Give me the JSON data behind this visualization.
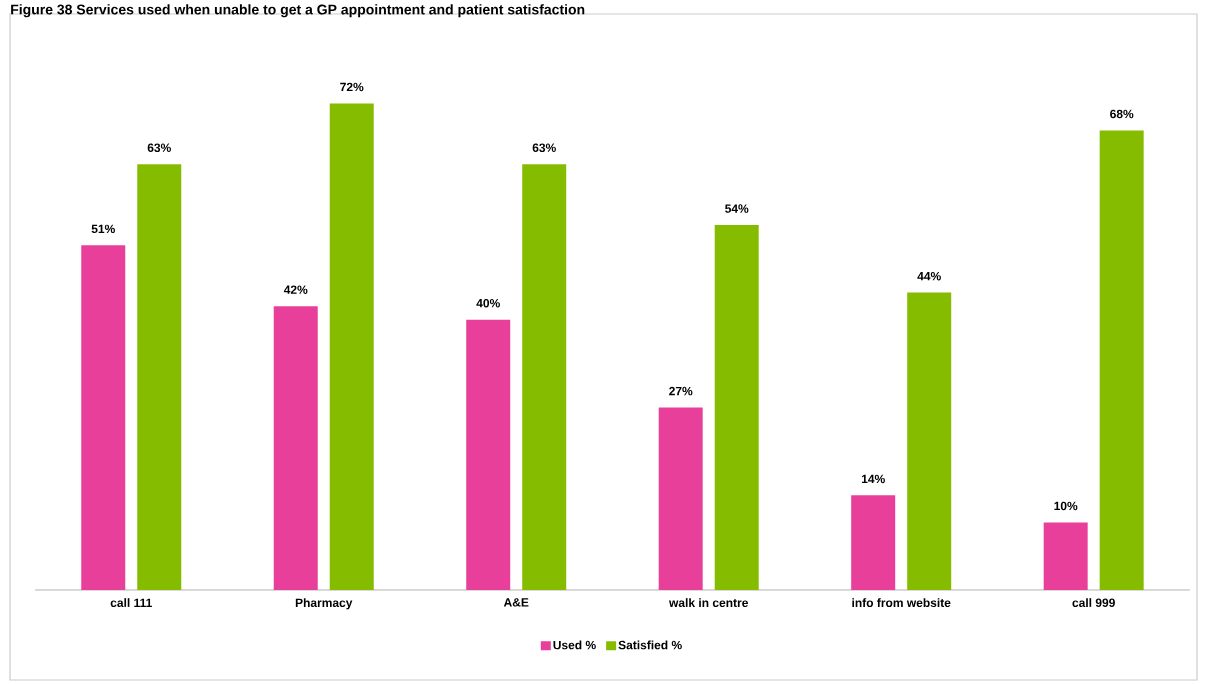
{
  "chart_data": {
    "type": "bar",
    "title": "Figure 38 Services used when unable to get a GP appointment and patient satisfaction",
    "categories": [
      "call 111",
      "Pharmacy",
      "A&E",
      "walk in centre",
      "info from website",
      "call 999"
    ],
    "series": [
      {
        "name": "Used %",
        "color": "#e8409a",
        "values": [
          51,
          42,
          40,
          27,
          14,
          10
        ],
        "value_labels": [
          "51%",
          "42%",
          "40%",
          "27%",
          "14%",
          "10%"
        ]
      },
      {
        "name": "Satisfied %",
        "color": "#86bc00",
        "values": [
          63,
          72,
          63,
          54,
          44,
          68
        ],
        "value_labels": [
          "63%",
          "72%",
          "63%",
          "54%",
          "44%",
          "68%"
        ]
      }
    ],
    "legend": "bottom"
  }
}
